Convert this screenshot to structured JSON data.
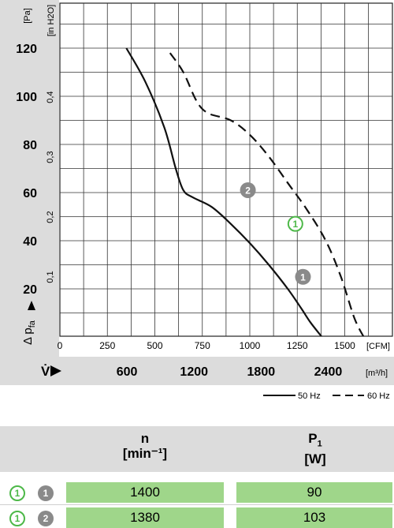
{
  "chart_data": {
    "type": "line",
    "y_unit_left": "[Pa]",
    "y_unit_right": "[in H2O]",
    "y_ticks_left": [
      "120",
      "100",
      "80",
      "60",
      "40",
      "20"
    ],
    "y_ticks_right": [
      "0,4",
      "0,3",
      "0,2",
      "0,1"
    ],
    "ylabel_main": "Δ p",
    "ylabel_sub": "fa",
    "x_ticks_cfm": [
      "0",
      "250",
      "500",
      "750",
      "1000",
      "1250",
      "1500"
    ],
    "x_unit_cfm": "[CFM]",
    "xlabel": "V̇",
    "x_ticks_m3h": [
      "600",
      "1200",
      "1800",
      "2400"
    ],
    "x_unit_m3h": "[m³/h]",
    "xlim_cfm": [
      0,
      1650
    ],
    "ylim_pa": [
      0,
      130
    ],
    "series": [
      {
        "name": "50 Hz",
        "style": "solid",
        "color": "#111111",
        "x": [
          350,
          450,
          550,
          610,
          650,
          700,
          800,
          900,
          1000,
          1100,
          1200,
          1270,
          1320,
          1380,
          1440
        ],
        "y": [
          120,
          106,
          87,
          70,
          61,
          58,
          54,
          47,
          39,
          30,
          20,
          12,
          6,
          0,
          -6
        ]
      },
      {
        "name": "60 Hz",
        "style": "dashed",
        "color": "#111111",
        "x": [
          580,
          650,
          720,
          780,
          900,
          1000,
          1100,
          1200,
          1300,
          1400,
          1480,
          1550,
          1600
        ],
        "y": [
          118,
          110,
          98,
          93,
          90,
          84,
          75,
          64,
          53,
          40,
          25,
          8,
          0
        ]
      }
    ],
    "markers": [
      {
        "label": "2",
        "kind": "filled",
        "x": 990,
        "y": 61
      },
      {
        "label": "1",
        "kind": "outline",
        "x": 1240,
        "y": 47
      },
      {
        "label": "1",
        "kind": "filled",
        "x": 1280,
        "y": 25
      }
    ],
    "colors": {
      "panel": "#dcdcdc",
      "accent_green": "#4db848",
      "marker_gray": "#8a8a8a",
      "cell_green": "#9fd68a"
    }
  },
  "legend": {
    "item1": "50 Hz",
    "item2": "60 Hz"
  },
  "table": {
    "col_n_title": "n",
    "col_n_unit": "[min⁻¹]",
    "col_p_title": "P",
    "col_p_sub": "1",
    "col_p_unit": "[W]",
    "rows": [
      {
        "badge_outline": "1",
        "badge_filled": "1",
        "n": "1400",
        "p": "90"
      },
      {
        "badge_outline": "1",
        "badge_filled": "2",
        "n": "1380",
        "p": "103"
      }
    ]
  }
}
